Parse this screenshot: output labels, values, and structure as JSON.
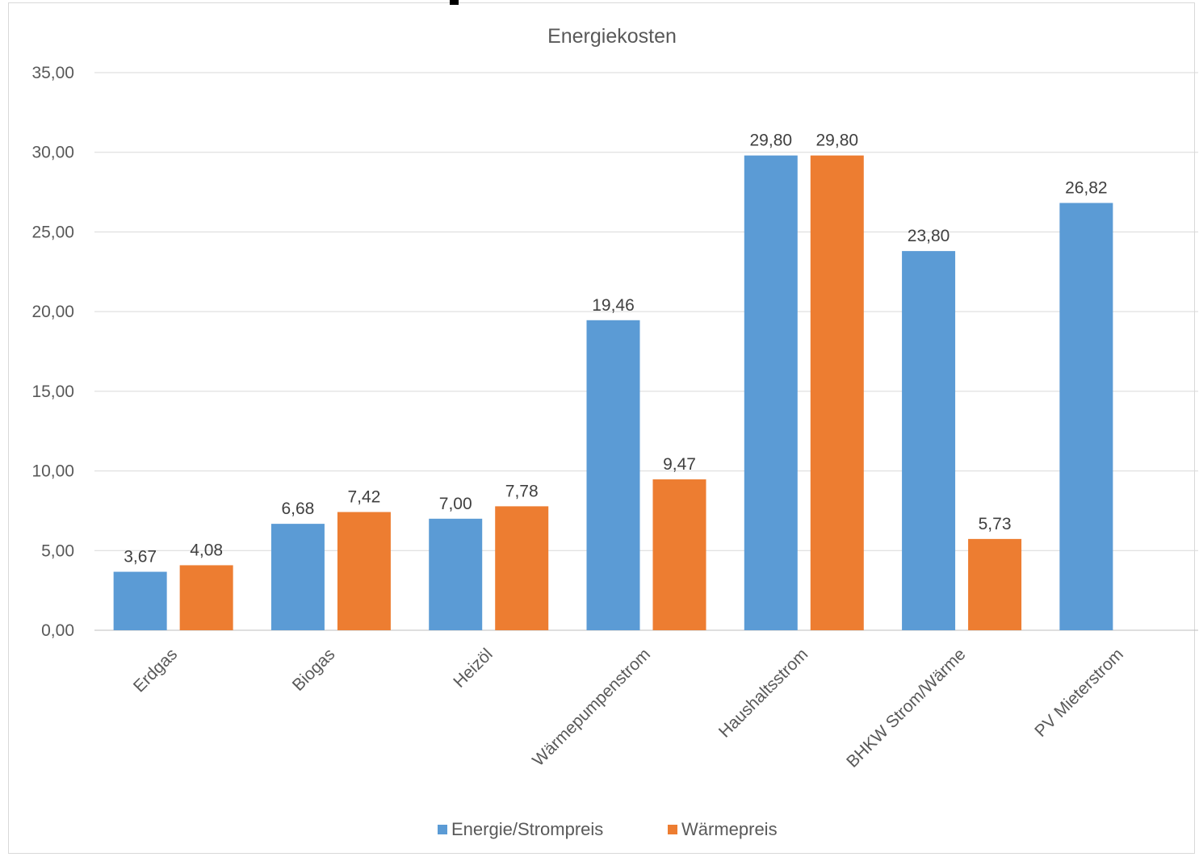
{
  "chart_data": {
    "type": "bar",
    "title": "Energiekosten",
    "xlabel": "",
    "ylabel": "",
    "ylim": [
      0,
      35
    ],
    "ytick_step": 5,
    "ytick_labels": [
      "0,00",
      "5,00",
      "10,00",
      "15,00",
      "20,00",
      "25,00",
      "30,00",
      "35,00"
    ],
    "grid": "horizontal",
    "legend_position": "bottom",
    "categories": [
      "Erdgas",
      "Biogas",
      "Heizöl",
      "Wärmepumpenstrom",
      "Haushaltsstrom",
      "BHKW Strom/Wärme",
      "PV Mieterstrom"
    ],
    "series": [
      {
        "name": "Energie/Strompreis",
        "color": "#5b9bd5",
        "values": [
          3.67,
          6.68,
          7.0,
          19.46,
          29.8,
          23.8,
          26.82
        ],
        "labels": [
          "3,67",
          "6,68",
          "7,00",
          "19,46",
          "29,80",
          "23,80",
          "26,82"
        ]
      },
      {
        "name": "Wärmepreis",
        "color": "#ed7d31",
        "values": [
          4.08,
          7.42,
          7.78,
          9.47,
          29.8,
          5.73,
          null
        ],
        "labels": [
          "4,08",
          "7,42",
          "7,78",
          "9,47",
          "29,80",
          "5,73",
          null
        ]
      }
    ]
  }
}
